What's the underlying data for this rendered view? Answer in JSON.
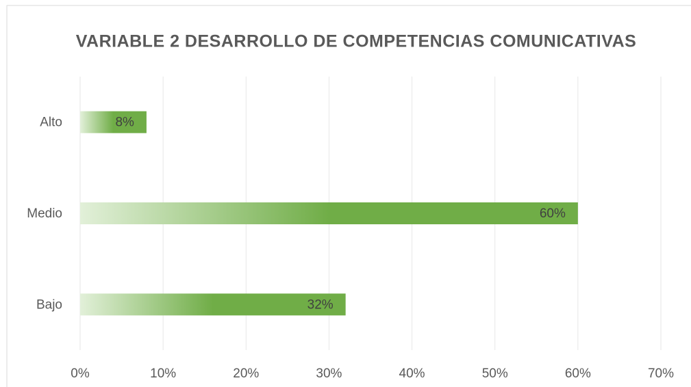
{
  "chart_data": {
    "type": "bar",
    "orientation": "horizontal",
    "title": "VARIABLE  2  DESARROLLO DE COMPETENCIAS COMUNICATIVAS",
    "categories": [
      "Alto",
      "Medio",
      "Bajo"
    ],
    "values": [
      8,
      60,
      32
    ],
    "value_labels": [
      "8%",
      "60%",
      "32%"
    ],
    "color": "#70ad47",
    "xlim": [
      0,
      70
    ],
    "xticks": [
      {
        "value": 0,
        "label": "0%"
      },
      {
        "value": 10,
        "label": "10%"
      },
      {
        "value": 20,
        "label": "20%"
      },
      {
        "value": 30,
        "label": "30%"
      },
      {
        "value": 40,
        "label": "40%"
      },
      {
        "value": 50,
        "label": "50%"
      },
      {
        "value": 60,
        "label": "60%"
      },
      {
        "value": 70,
        "label": "70%"
      }
    ],
    "grid": true
  }
}
